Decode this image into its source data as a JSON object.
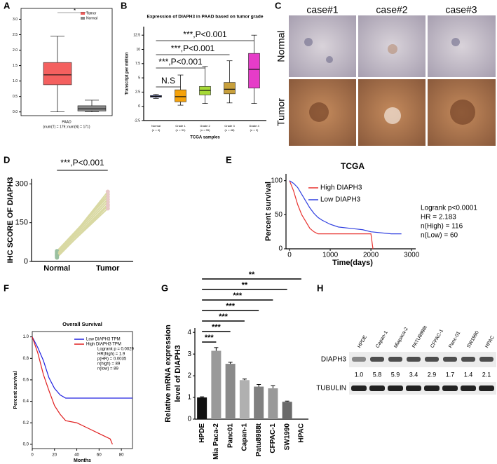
{
  "chart_data": [
    {
      "panel": "A",
      "type": "box",
      "xlabel": "PAAD",
      "xnote": "(num(T) = 179; num(N) = 171)",
      "annotation": "*",
      "ylim": [
        -0.12,
        3.35
      ],
      "yticks": [
        {
          "value": 0,
          "label": "0.0"
        },
        {
          "value": 0.5,
          "label": "0.5"
        },
        {
          "value": 1,
          "label": "1.0"
        },
        {
          "value": 1.5,
          "label": "1.5"
        },
        {
          "value": 2,
          "label": "2.0"
        },
        {
          "value": 2.5,
          "label": "2.5"
        },
        {
          "value": 3,
          "label": "3.0"
        }
      ],
      "legend": "upper right",
      "boxes": [
        {
          "name": "Tumor",
          "color": "#f4605f",
          "min": 0,
          "q1": 0.88,
          "median": 1.2,
          "q3": 1.6,
          "max": 2.45
        },
        {
          "name": "Normal",
          "color": "#888888",
          "min": 0,
          "q1": 0.03,
          "median": 0.1,
          "q3": 0.2,
          "max": 0.38
        }
      ]
    },
    {
      "panel": "B",
      "type": "box",
      "title": "Expression of DIAPH3 in PAAD based on tumor grade",
      "ylabel": "Transcript per million",
      "xlabel": "TCGA samples",
      "categories": [
        "Normal",
        "Grade 1",
        "Grade 2",
        "Grade 3",
        "Grade 4"
      ],
      "category_notes": [
        "(n = 4)",
        "(n = 31)",
        "(n = 95)",
        "(n = 48)",
        "(n = 2)"
      ],
      "ylim": [
        -2.5,
        14
      ],
      "yticks": [
        -2.5,
        0,
        2.5,
        5,
        7.5,
        10,
        12.5
      ],
      "annotations": [
        "N.S",
        "***,P<0.001",
        "***,P<0.001",
        "***,P<0.001"
      ],
      "boxes": [
        {
          "color": "#3a4fbf",
          "min": 1.4,
          "q1": 1.6,
          "median": 1.75,
          "q3": 1.9,
          "max": 2.1
        },
        {
          "color": "#f5a20a",
          "min": 0.2,
          "q1": 0.8,
          "median": 1.7,
          "q3": 2.9,
          "max": 5.5
        },
        {
          "color": "#a6d936",
          "min": 0.5,
          "q1": 2.0,
          "median": 2.8,
          "q3": 3.5,
          "max": 7.0
        },
        {
          "color": "#c8a03c",
          "min": 0.6,
          "q1": 2.2,
          "median": 3.0,
          "q3": 4.2,
          "max": 8.0
        },
        {
          "color": "#e63cc8",
          "min": 0.5,
          "q1": 3.2,
          "median": 6.5,
          "q3": 9.3,
          "max": 12.5
        }
      ]
    },
    {
      "panel": "D",
      "type": "line",
      "ylabel": "IHC SCORE OF DIAPH3",
      "categories": [
        "Normal",
        "Tumor"
      ],
      "ylim": [
        0,
        320
      ],
      "yticks": [
        0,
        150,
        300
      ],
      "annotation": "***,P<0.001",
      "color": "#d9d9a3",
      "series": [
        {
          "values": [
            20,
            205
          ]
        },
        {
          "values": [
            25,
            220
          ]
        },
        {
          "values": [
            30,
            230
          ]
        },
        {
          "values": [
            35,
            240
          ]
        },
        {
          "values": [
            15,
            215
          ]
        },
        {
          "values": [
            40,
            250
          ]
        },
        {
          "values": [
            28,
            260
          ]
        },
        {
          "values": [
            22,
            270
          ]
        }
      ]
    },
    {
      "panel": "E",
      "type": "line",
      "title": "TCGA",
      "ylabel": "Percent survival",
      "xlabel": "Time(days)",
      "xlim": [
        0,
        3100
      ],
      "ylim": [
        0,
        110
      ],
      "xticks": [
        0,
        1000,
        2000,
        3000
      ],
      "yticks": [
        0,
        50,
        100
      ],
      "annotations": [
        "Logrank p<0.0001",
        "HR = 2.183",
        "n(High) = 116",
        "n(Low) = 60"
      ],
      "series": [
        {
          "name": "High DIAPH3",
          "color": "#e8322f",
          "x": [
            0,
            100,
            200,
            300,
            400,
            500,
            600,
            700,
            900,
            2000,
            2050
          ],
          "values": [
            100,
            85,
            65,
            50,
            40,
            30,
            25,
            22,
            22,
            22,
            0
          ]
        },
        {
          "name": "Low DIAPH3",
          "color": "#2f3fe0",
          "x": [
            0,
            100,
            200,
            300,
            400,
            500,
            600,
            700,
            800,
            1000,
            1200,
            1500,
            1800,
            2000,
            2500,
            2750
          ],
          "values": [
            100,
            96,
            90,
            80,
            70,
            60,
            52,
            46,
            42,
            36,
            32,
            30,
            28,
            25,
            22,
            22
          ]
        }
      ]
    },
    {
      "panel": "F",
      "type": "line",
      "title": "Overall Survival",
      "ylabel": "Percent survival",
      "xlabel": "Months",
      "xlim": [
        0,
        90
      ],
      "ylim": [
        -0.04,
        1.05
      ],
      "xticks": [
        0,
        20,
        40,
        60,
        80
      ],
      "yticks": [
        {
          "value": 0,
          "label": "0.0"
        },
        {
          "value": 0.2,
          "label": "0.2"
        },
        {
          "value": 0.4,
          "label": "0.4"
        },
        {
          "value": 0.6,
          "label": "0.6"
        },
        {
          "value": 0.8,
          "label": "0.8"
        },
        {
          "value": 1,
          "label": "1.0"
        }
      ],
      "annotations": [
        "Logrank p = 0.0029",
        "HR(high) = 1.9",
        "p(HR) = 0.0035",
        "n(high) = 89",
        "n(low) = 89"
      ],
      "series": [
        {
          "name": "Low DIAPH3 TPM",
          "color": "#2020e0",
          "x": [
            0,
            5,
            10,
            15,
            20,
            25,
            30,
            40,
            90
          ],
          "values": [
            1,
            0.9,
            0.78,
            0.62,
            0.52,
            0.46,
            0.43,
            0.43,
            0.43
          ]
        },
        {
          "name": "High DIAPH3 TPM",
          "color": "#e02020",
          "x": [
            0,
            5,
            10,
            15,
            20,
            25,
            30,
            40,
            50,
            60,
            70,
            72
          ],
          "values": [
            1,
            0.85,
            0.65,
            0.5,
            0.36,
            0.28,
            0.22,
            0.2,
            0.15,
            0.1,
            0.05,
            0
          ]
        }
      ]
    },
    {
      "panel": "G",
      "type": "bar",
      "ylabel": [
        "Relative mRNA expression",
        "level of DIAPH3"
      ],
      "categories": [
        "HPDE",
        "Mia Paca-2",
        "Panc01",
        "Capan-1",
        "Patu8988t",
        "CFPAC-1",
        "SW1990",
        "HPAC"
      ],
      "values": [
        1.0,
        3.15,
        2.55,
        1.8,
        1.5,
        1.42,
        0.8,
        0
      ],
      "errors": [
        0.03,
        0.15,
        0.07,
        0.05,
        0.1,
        0.12,
        0.03,
        0
      ],
      "colors": [
        "#111111",
        "#9a9a9a",
        "#8a8a8a",
        "#b0b0b0",
        "#808080",
        "#999999",
        "#6a6a6a",
        "#ffffff"
      ],
      "ylim": [
        0,
        4.2
      ],
      "yticks": [
        0,
        1,
        2,
        3,
        4
      ],
      "annotations": [
        "**",
        "**",
        "***",
        "***",
        "***",
        "***",
        "***"
      ]
    }
  ],
  "panel_c": {
    "label": "C",
    "cases": [
      "case#1",
      "case#2",
      "case#3"
    ],
    "rows": [
      "Normal",
      "Tumor"
    ]
  },
  "panel_h": {
    "label": "H",
    "lanes": [
      "HPDE",
      "Capan-1",
      "Miapaca-2",
      "PATU8988t",
      "CFPAC-1",
      "Panc-01",
      "SW1990",
      "HPAC"
    ],
    "bands": [
      "DIAPH3",
      "TUBULIN"
    ],
    "ratios": [
      "1.0",
      "5.8",
      "5.9",
      "3.4",
      "2.9",
      "1.7",
      "1.4",
      "2.1"
    ]
  }
}
